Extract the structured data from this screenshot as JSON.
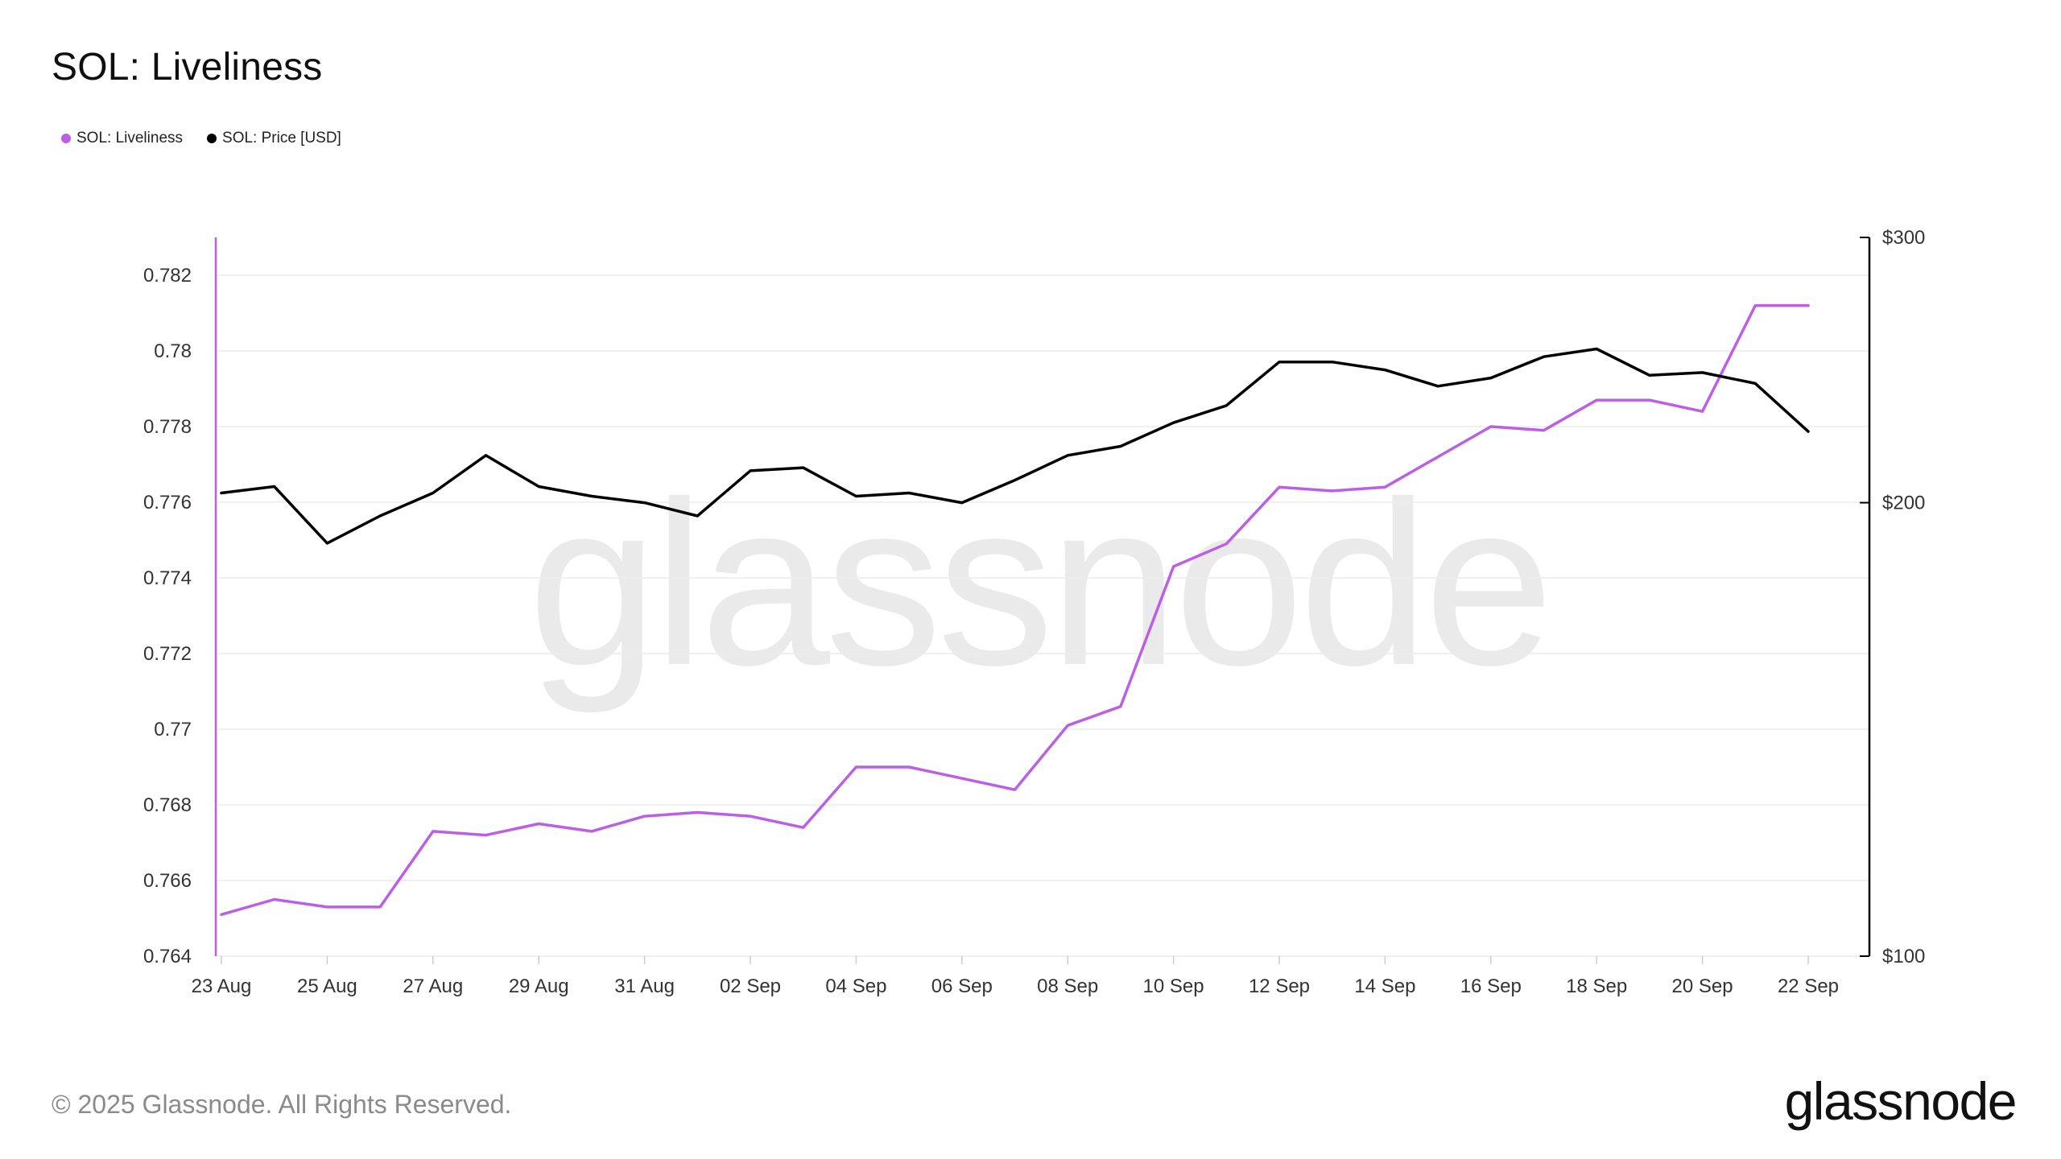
{
  "title": "SOL: Liveliness",
  "legend": [
    {
      "label": "SOL: Liveliness",
      "color": "#bb5fe5"
    },
    {
      "label": "SOL: Price [USD]",
      "color": "#000000"
    }
  ],
  "watermark": "glassnode",
  "footer": {
    "copyright": "© 2025 Glassnode. All Rights Reserved.",
    "logo": "glassnode"
  },
  "chart_data": {
    "type": "line",
    "title": "SOL: Liveliness",
    "x": [
      "23 Aug",
      "24 Aug",
      "25 Aug",
      "26 Aug",
      "27 Aug",
      "28 Aug",
      "29 Aug",
      "30 Aug",
      "31 Aug",
      "01 Sep",
      "02 Sep",
      "03 Sep",
      "04 Sep",
      "05 Sep",
      "06 Sep",
      "07 Sep",
      "08 Sep",
      "09 Sep",
      "10 Sep",
      "11 Sep",
      "12 Sep",
      "13 Sep",
      "14 Sep",
      "15 Sep",
      "16 Sep",
      "17 Sep",
      "18 Sep",
      "19 Sep",
      "20 Sep",
      "21 Sep",
      "22 Sep"
    ],
    "x_tick_labels": [
      "23 Aug",
      "25 Aug",
      "27 Aug",
      "29 Aug",
      "31 Aug",
      "02 Sep",
      "04 Sep",
      "06 Sep",
      "08 Sep",
      "10 Sep",
      "12 Sep",
      "14 Sep",
      "16 Sep",
      "18 Sep",
      "20 Sep",
      "22 Sep"
    ],
    "y_left": {
      "ylim": [
        0.764,
        0.783
      ],
      "tick_values": [
        0.764,
        0.766,
        0.768,
        0.77,
        0.772,
        0.774,
        0.776,
        0.778,
        0.78,
        0.782
      ],
      "tick_labels": [
        "0.764",
        "0.766",
        "0.768",
        "0.77",
        "0.772",
        "0.774",
        "0.776",
        "0.778",
        "0.78",
        "0.782"
      ]
    },
    "y_right": {
      "scale": "log",
      "ylim": [
        100,
        300
      ],
      "tick_values": [
        100,
        200,
        300
      ],
      "tick_labels": [
        "$100",
        "$200",
        "$300"
      ]
    },
    "series": [
      {
        "name": "SOL: Liveliness",
        "axis": "left",
        "color": "#bb5fe5",
        "values": [
          0.7651,
          0.7655,
          0.7653,
          0.7653,
          0.7673,
          0.7672,
          0.7675,
          0.7673,
          0.7677,
          0.7678,
          0.7677,
          0.7674,
          0.769,
          0.769,
          0.7687,
          0.7684,
          0.7701,
          0.7706,
          0.7743,
          0.7749,
          0.7764,
          0.7763,
          0.7764,
          0.7772,
          0.778,
          0.7779,
          0.7787,
          0.7787,
          0.7784,
          0.7812,
          0.7812
        ]
      },
      {
        "name": "SOL: Price [USD]",
        "axis": "right",
        "color": "#000000",
        "values": [
          203,
          205,
          188,
          196,
          203,
          215,
          205,
          202,
          200,
          196,
          210,
          211,
          202,
          203,
          200,
          207,
          215,
          218,
          226,
          232,
          248,
          248,
          245,
          239,
          242,
          250,
          253,
          243,
          244,
          240,
          223
        ]
      }
    ],
    "grid": true,
    "legend_position": "top-left"
  }
}
